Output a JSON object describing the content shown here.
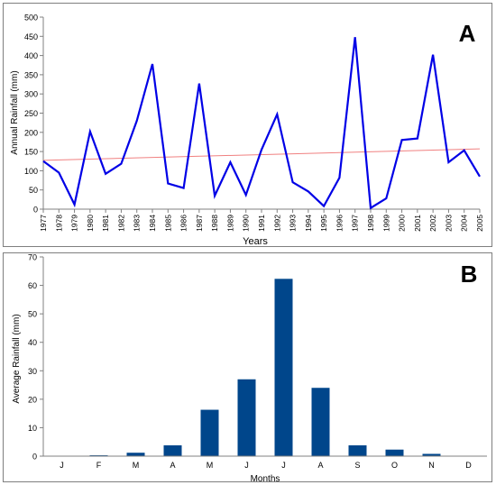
{
  "chart_data": [
    {
      "type": "line",
      "panel_label": "A",
      "xlabel": "Years",
      "ylabel": "Annual Rainfall (mm)",
      "ylim": [
        0,
        500
      ],
      "yticks": [
        "0",
        "50",
        "100",
        "150",
        "200",
        "250",
        "300",
        "350",
        "400",
        "450",
        "500"
      ],
      "grid": false,
      "x": [
        "1977",
        "1978",
        "1979",
        "1980",
        "1981",
        "1982",
        "1983",
        "1984",
        "1985",
        "1986",
        "1987",
        "1988",
        "1989",
        "1990",
        "1991",
        "1992",
        "1993",
        "1994",
        "1995",
        "1996",
        "1997",
        "1998",
        "1999",
        "2000",
        "2001",
        "2002",
        "2003",
        "2004",
        "2005"
      ],
      "series": [
        {
          "values": [
            125,
            95,
            12,
            202,
            92,
            118,
            230,
            378,
            67,
            55,
            327,
            35,
            122,
            37,
            155,
            247,
            70,
            46,
            8,
            82,
            448,
            3,
            28,
            180,
            184,
            402,
            122,
            153,
            85
          ],
          "color": "#0000e6"
        }
      ],
      "trendline": {
        "start": 127,
        "end": 157,
        "color": "#f08080"
      }
    },
    {
      "type": "bar",
      "panel_label": "B",
      "xlabel": "Months",
      "ylabel": "Average Rainfall (mm)",
      "ylim": [
        0,
        70
      ],
      "yticks": [
        "0",
        "10",
        "20",
        "30",
        "40",
        "50",
        "60",
        "70"
      ],
      "grid": false,
      "categories": [
        "J",
        "F",
        "M",
        "A",
        "M",
        "J",
        "J",
        "A",
        "S",
        "O",
        "N",
        "D"
      ],
      "values": [
        0,
        0.3,
        1.2,
        3.8,
        16.3,
        27,
        62.3,
        24,
        3.8,
        2.3,
        0.8,
        0
      ],
      "color": "#00468b"
    }
  ]
}
